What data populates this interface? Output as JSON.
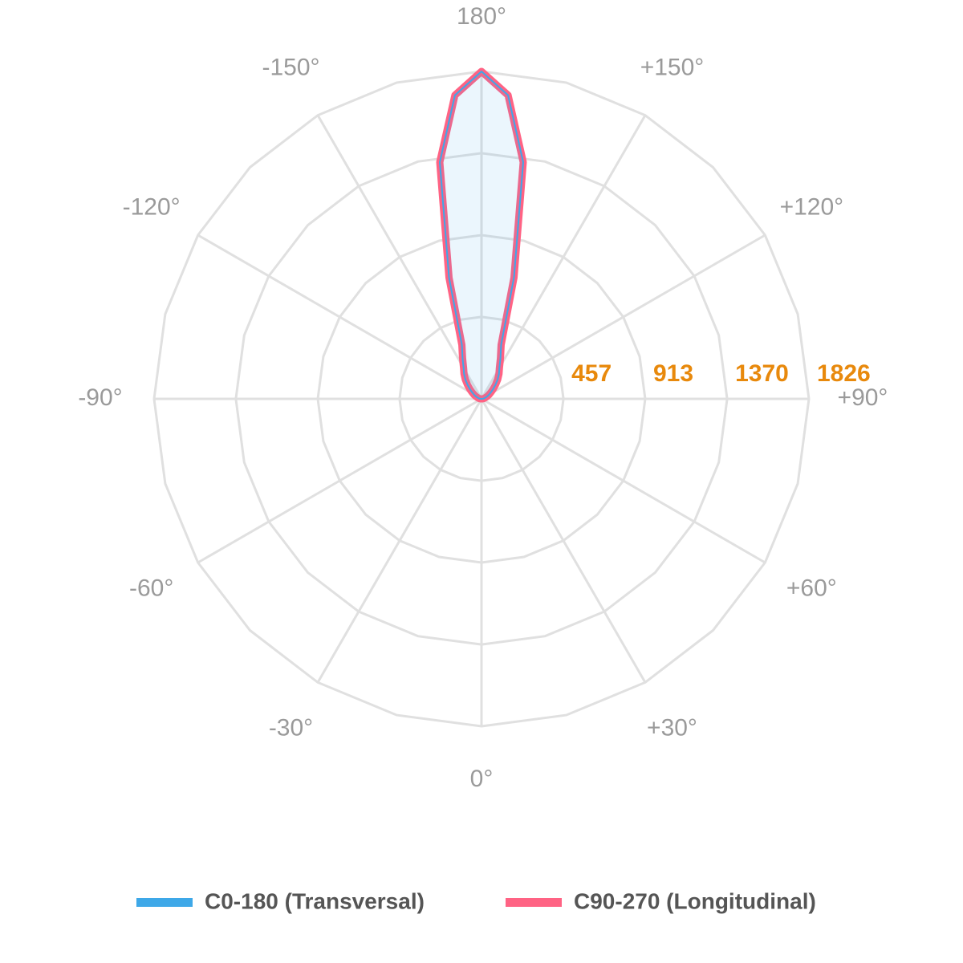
{
  "chart_data": {
    "type": "polar",
    "x": [
      -180,
      -175,
      -170,
      -165,
      -160,
      -155,
      -150,
      -145,
      -140,
      -135,
      -130,
      -125,
      -120,
      -115,
      -110,
      -105,
      -100,
      -95,
      -90,
      -85,
      -80,
      -75,
      -70,
      -65,
      -60,
      -55,
      -50,
      -45,
      -40,
      -35,
      -30,
      -25,
      -20,
      -15,
      -10,
      -5,
      0,
      5,
      10,
      15,
      20,
      25,
      30,
      35,
      40,
      45,
      50,
      55,
      60,
      65,
      70,
      75,
      80,
      85,
      90,
      95,
      100,
      105,
      110,
      115,
      120,
      125,
      130,
      135,
      140,
      145,
      150,
      155,
      160,
      165,
      170,
      175,
      180
    ],
    "series": [
      {
        "name": "C0-180 (Transversal)",
        "color": "#3ea8e8",
        "values": [
          1826,
          1700,
          1340,
          700,
          320,
          250,
          200,
          170,
          140,
          110,
          85,
          65,
          50,
          38,
          28,
          20,
          14,
          9,
          5,
          0,
          0,
          0,
          0,
          0,
          0,
          0,
          0,
          0,
          0,
          0,
          0,
          0,
          0,
          0,
          0,
          0,
          0,
          0,
          0,
          0,
          0,
          0,
          0,
          0,
          0,
          0,
          0,
          0,
          0,
          0,
          0,
          0,
          0,
          0,
          5,
          9,
          14,
          20,
          28,
          38,
          50,
          65,
          85,
          110,
          140,
          170,
          200,
          250,
          320,
          700,
          1340,
          1700,
          1826
        ]
      },
      {
        "name": "C90-270 (Longitudinal)",
        "color": "#ff6384",
        "values": [
          1826,
          1700,
          1340,
          700,
          320,
          250,
          200,
          170,
          140,
          110,
          85,
          65,
          50,
          38,
          28,
          20,
          14,
          9,
          5,
          0,
          0,
          0,
          0,
          0,
          0,
          0,
          0,
          0,
          0,
          0,
          0,
          0,
          0,
          0,
          0,
          0,
          0,
          0,
          0,
          0,
          0,
          0,
          0,
          0,
          0,
          0,
          0,
          0,
          0,
          0,
          0,
          0,
          0,
          0,
          5,
          9,
          14,
          20,
          28,
          38,
          50,
          65,
          85,
          110,
          140,
          170,
          200,
          250,
          320,
          700,
          1340,
          1700,
          1826
        ]
      }
    ],
    "rlim": [
      0,
      1826
    ],
    "rticks": [
      457,
      913,
      1370,
      1826
    ],
    "angle_ticks": [
      {
        "value": 180,
        "label": "180°"
      },
      {
        "value": -150,
        "label": "-150°"
      },
      {
        "value": -120,
        "label": "-120°"
      },
      {
        "value": -90,
        "label": "-90°"
      },
      {
        "value": -60,
        "label": "-60°"
      },
      {
        "value": -30,
        "label": "-30°"
      },
      {
        "value": 0,
        "label": "0°"
      },
      {
        "value": 30,
        "label": "+30°"
      },
      {
        "value": 60,
        "label": "+60°"
      },
      {
        "value": 90,
        "label": "+90°"
      },
      {
        "value": 120,
        "label": "+120°"
      },
      {
        "value": 150,
        "label": "+150°"
      }
    ],
    "grid": true,
    "legend": "bottom"
  }
}
